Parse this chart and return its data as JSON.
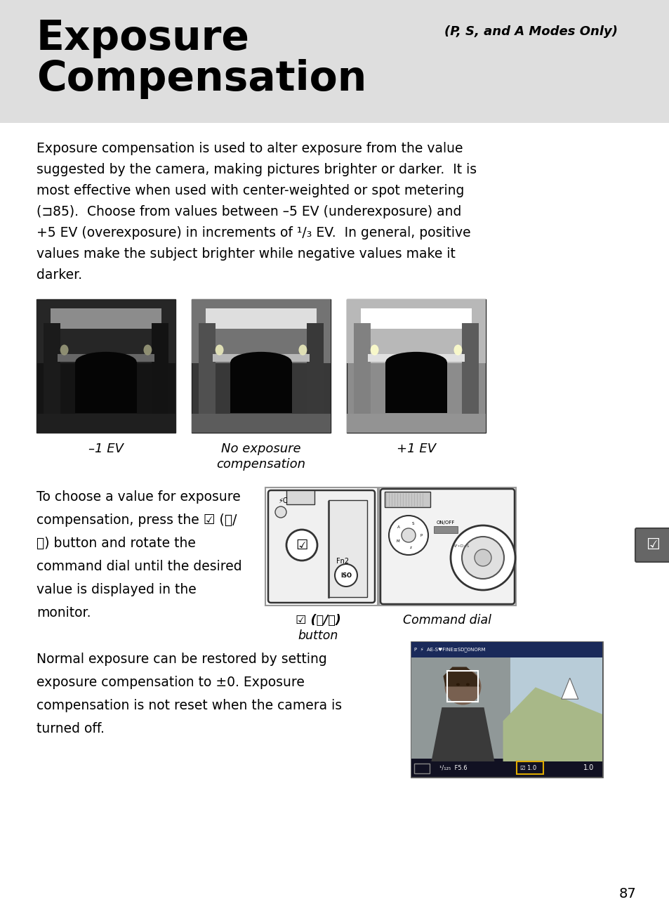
{
  "page_bg": "#ffffff",
  "header_bg": "#e0e0e0",
  "title_line1": "Exposure",
  "title_line2": "Compensation",
  "subtitle": "(P, S, and A Modes Only)",
  "body_lines": [
    "Exposure compensation is used to alter exposure from the value",
    "suggested by the camera, making pictures brighter or darker.  It is",
    "most effective when used with center-weighted or spot metering",
    "(⊐85).  Choose from values between –5 EV (underexposure) and",
    "+5 EV (overexposure) in increments of ¹/₃ EV.  In general, positive",
    "values make the subject brighter while negative values make it",
    "darker."
  ],
  "caption_left": "–1 EV",
  "caption_center_1": "No exposure",
  "caption_center_2": "compensation",
  "caption_right": "+1 EV",
  "para2_lines": [
    "To choose a value for exposure",
    "compensation, press the ☑ (Ⓡ/",
    "Ⓟ) button and rotate the",
    "command dial until the desired",
    "value is displayed in the",
    "monitor."
  ],
  "btn_label_1": "☑ (Ⓡ/Ⓟ)",
  "btn_label_2": "button",
  "cmd_dial_label": "Command dial",
  "para3_lines": [
    "Normal exposure can be restored by setting",
    "exposure compensation to ±0. Exposure",
    "compensation is not reset when the camera is",
    "turned off."
  ],
  "page_number": "87"
}
